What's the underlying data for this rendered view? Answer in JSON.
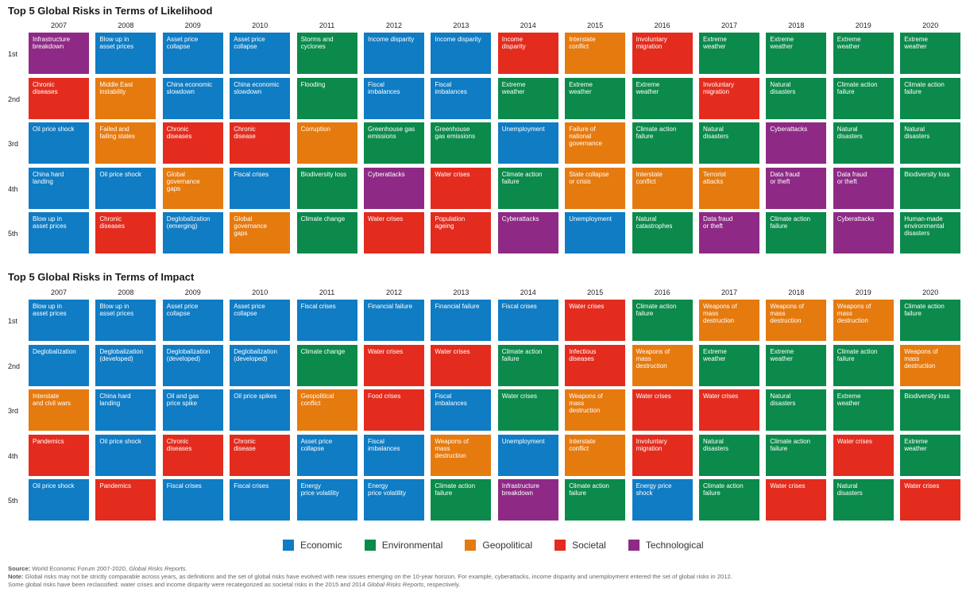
{
  "colors": {
    "Economic": "#0F7CC4",
    "Environmental": "#0B8A4B",
    "Geopolitical": "#E57A0F",
    "Societal": "#E32C1E",
    "Technological": "#8E2A86"
  },
  "years": [
    "2007",
    "2008",
    "2009",
    "2010",
    "2011",
    "2012",
    "2013",
    "2014",
    "2015",
    "2016",
    "2017",
    "2018",
    "2019",
    "2020"
  ],
  "ranks": [
    "1st",
    "2nd",
    "3rd",
    "4th",
    "5th"
  ],
  "legend": [
    "Economic",
    "Environmental",
    "Geopolitical",
    "Societal",
    "Technological"
  ],
  "chart_data": [
    {
      "type": "table",
      "title": "Top 5 Global Risks in Terms of Likelihood",
      "columns": [
        "2007",
        "2008",
        "2009",
        "2010",
        "2011",
        "2012",
        "2013",
        "2014",
        "2015",
        "2016",
        "2017",
        "2018",
        "2019",
        "2020"
      ],
      "rows": [
        "1st",
        "2nd",
        "3rd",
        "4th",
        "5th"
      ],
      "cells": [
        [
          [
            "Infrastructure\nbreakdown",
            "Technological"
          ],
          [
            "Blow up in\nasset prices",
            "Economic"
          ],
          [
            "Asset price\ncollapse",
            "Economic"
          ],
          [
            "Asset price\ncollapse",
            "Economic"
          ],
          [
            "Storms and\ncyclones",
            "Environmental"
          ],
          [
            "Income disparity",
            "Economic"
          ],
          [
            "Income disparity",
            "Economic"
          ],
          [
            "Income\ndisparity",
            "Societal"
          ],
          [
            "Interstate\nconflict",
            "Geopolitical"
          ],
          [
            "Involuntary\nmigration",
            "Societal"
          ],
          [
            "Extreme\nweather",
            "Environmental"
          ],
          [
            "Extreme\nweather",
            "Environmental"
          ],
          [
            "Extreme\nweather",
            "Environmental"
          ],
          [
            "Extreme\nweather",
            "Environmental"
          ]
        ],
        [
          [
            "Chronic\ndiseases",
            "Societal"
          ],
          [
            "Middle East\ninstability",
            "Geopolitical"
          ],
          [
            "China economic\nslowdown",
            "Economic"
          ],
          [
            "China economic\nslowdown",
            "Economic"
          ],
          [
            "Flooding",
            "Environmental"
          ],
          [
            "Fiscal\nimbalances",
            "Economic"
          ],
          [
            "Fiscal\nimbalances",
            "Economic"
          ],
          [
            "Extreme\nweather",
            "Environmental"
          ],
          [
            "Extreme\nweather",
            "Environmental"
          ],
          [
            "Extreme\nweather",
            "Environmental"
          ],
          [
            "Involuntary\nmigration",
            "Societal"
          ],
          [
            "Natural\ndisasters",
            "Environmental"
          ],
          [
            "Climate action\nfailure",
            "Environmental"
          ],
          [
            "Climate action\nfailure",
            "Environmental"
          ]
        ],
        [
          [
            "Oil price shock",
            "Economic"
          ],
          [
            "Failed and\nfailing states",
            "Geopolitical"
          ],
          [
            "Chronic\ndiseases",
            "Societal"
          ],
          [
            "Chronic\ndisease",
            "Societal"
          ],
          [
            "Corruption",
            "Geopolitical"
          ],
          [
            "Greenhouse gas\nemissions",
            "Environmental"
          ],
          [
            "Greenhouse\ngas emissions",
            "Environmental"
          ],
          [
            "Unemployment",
            "Economic"
          ],
          [
            "Failure of\nnational\ngovernance",
            "Geopolitical"
          ],
          [
            "Climate action\nfailure",
            "Environmental"
          ],
          [
            "Natural\ndisasters",
            "Environmental"
          ],
          [
            "Cyberattacks",
            "Technological"
          ],
          [
            "Natural\ndisasters",
            "Environmental"
          ],
          [
            "Natural\ndisasters",
            "Environmental"
          ]
        ],
        [
          [
            "China hard\nlanding",
            "Economic"
          ],
          [
            "Oil price shock",
            "Economic"
          ],
          [
            "Global\ngovernance\ngaps",
            "Geopolitical"
          ],
          [
            "Fiscal crises",
            "Economic"
          ],
          [
            "Biodiversity loss",
            "Environmental"
          ],
          [
            "Cyberattacks",
            "Technological"
          ],
          [
            "Water crises",
            "Societal"
          ],
          [
            "Climate action\nfailure",
            "Environmental"
          ],
          [
            "State collapse\nor crisis",
            "Geopolitical"
          ],
          [
            "Interstate\nconflict",
            "Geopolitical"
          ],
          [
            "Terrorist\nattacks",
            "Geopolitical"
          ],
          [
            "Data fraud\nor theft",
            "Technological"
          ],
          [
            "Data fraud\nor theft",
            "Technological"
          ],
          [
            "Biodiversity loss",
            "Environmental"
          ]
        ],
        [
          [
            "Blow up in\nasset prices",
            "Economic"
          ],
          [
            "Chronic\ndiseases",
            "Societal"
          ],
          [
            "Deglobalization\n(emerging)",
            "Economic"
          ],
          [
            "Global\ngovernance\ngaps",
            "Geopolitical"
          ],
          [
            "Climate change",
            "Environmental"
          ],
          [
            "Water crises",
            "Societal"
          ],
          [
            "Population\nageing",
            "Societal"
          ],
          [
            "Cyberattacks",
            "Technological"
          ],
          [
            "Unemployment",
            "Economic"
          ],
          [
            "Natural\ncatastrophes",
            "Environmental"
          ],
          [
            "Data fraud\nor theft",
            "Technological"
          ],
          [
            "Climate action\nfailure",
            "Environmental"
          ],
          [
            "Cyberattacks",
            "Technological"
          ],
          [
            "Human-made\nenvironmental\ndisasters",
            "Environmental"
          ]
        ]
      ]
    },
    {
      "type": "table",
      "title": "Top 5 Global Risks in Terms of Impact",
      "columns": [
        "2007",
        "2008",
        "2009",
        "2010",
        "2011",
        "2012",
        "2013",
        "2014",
        "2015",
        "2016",
        "2017",
        "2018",
        "2019",
        "2020"
      ],
      "rows": [
        "1st",
        "2nd",
        "3rd",
        "4th",
        "5th"
      ],
      "cells": [
        [
          [
            "Blow up in\nasset prices",
            "Economic"
          ],
          [
            "Blow up in\nasset prices",
            "Economic"
          ],
          [
            "Asset price\ncollapse",
            "Economic"
          ],
          [
            "Asset price\ncollapse",
            "Economic"
          ],
          [
            "Fiscal crises",
            "Economic"
          ],
          [
            "Financial failure",
            "Economic"
          ],
          [
            "Financial failure",
            "Economic"
          ],
          [
            "Fiscal crises",
            "Economic"
          ],
          [
            "Water crises",
            "Societal"
          ],
          [
            "Climate action\nfailure",
            "Environmental"
          ],
          [
            "Weapons of\nmass\ndestruction",
            "Geopolitical"
          ],
          [
            "Weapons of\nmass\ndestruction",
            "Geopolitical"
          ],
          [
            "Weapons of\nmass\ndestruction",
            "Geopolitical"
          ],
          [
            "Climate action\nfailure",
            "Environmental"
          ]
        ],
        [
          [
            "Deglobalization",
            "Economic"
          ],
          [
            "Deglobalization\n(developed)",
            "Economic"
          ],
          [
            "Deglobalization\n(developed)",
            "Economic"
          ],
          [
            "Deglobalization\n(developed)",
            "Economic"
          ],
          [
            "Climate change",
            "Environmental"
          ],
          [
            "Water crises",
            "Societal"
          ],
          [
            "Water crises",
            "Societal"
          ],
          [
            "Climate action\nfailure",
            "Environmental"
          ],
          [
            "Infectious\ndiseases",
            "Societal"
          ],
          [
            "Weapons of\nmass\ndestruction",
            "Geopolitical"
          ],
          [
            "Extreme\nweather",
            "Environmental"
          ],
          [
            "Extreme\nweather",
            "Environmental"
          ],
          [
            "Climate action\nfailure",
            "Environmental"
          ],
          [
            "Weapons of\nmass\ndestruction",
            "Geopolitical"
          ]
        ],
        [
          [
            "Interstate\nand civil wars",
            "Geopolitical"
          ],
          [
            "China hard\nlanding",
            "Economic"
          ],
          [
            "Oil and gas\nprice spike",
            "Economic"
          ],
          [
            "Oil price spikes",
            "Economic"
          ],
          [
            "Geopolitical\nconflict",
            "Geopolitical"
          ],
          [
            "Food crises",
            "Societal"
          ],
          [
            "Fiscal\nimbalances",
            "Economic"
          ],
          [
            "Water crises",
            "Environmental"
          ],
          [
            "Weapons of\nmass\ndestruction",
            "Geopolitical"
          ],
          [
            "Water crises",
            "Societal"
          ],
          [
            "Water crises",
            "Societal"
          ],
          [
            "Natural\ndisasters",
            "Environmental"
          ],
          [
            "Extreme\nweather",
            "Environmental"
          ],
          [
            "Biodiversity loss",
            "Environmental"
          ]
        ],
        [
          [
            "Pandemics",
            "Societal"
          ],
          [
            "Oil price shock",
            "Economic"
          ],
          [
            "Chronic\ndiseases",
            "Societal"
          ],
          [
            "Chronic\ndisease",
            "Societal"
          ],
          [
            "Asset price\ncollapse",
            "Economic"
          ],
          [
            "Fiscal\nimbalances",
            "Economic"
          ],
          [
            "Weapons of\nmass\ndestruction",
            "Geopolitical"
          ],
          [
            "Unemployment",
            "Economic"
          ],
          [
            "Interstate\nconflict",
            "Geopolitical"
          ],
          [
            "Involuntary\nmigration",
            "Societal"
          ],
          [
            "Natural\ndisasters",
            "Environmental"
          ],
          [
            "Climate action\nfailure",
            "Environmental"
          ],
          [
            "Water crises",
            "Societal"
          ],
          [
            "Extreme\nweather",
            "Environmental"
          ]
        ],
        [
          [
            "Oil price shock",
            "Economic"
          ],
          [
            "Pandemics",
            "Societal"
          ],
          [
            "Fiscal crises",
            "Economic"
          ],
          [
            "Fiscal crises",
            "Economic"
          ],
          [
            "Energy\nprice volatility",
            "Economic"
          ],
          [
            "Energy\nprice volatility",
            "Economic"
          ],
          [
            "Climate action\nfailure",
            "Environmental"
          ],
          [
            "Infrastructure\nbreakdown",
            "Technological"
          ],
          [
            "Climate action\nfailure",
            "Environmental"
          ],
          [
            "Energy price\nshock",
            "Economic"
          ],
          [
            "Climate action\nfailure",
            "Environmental"
          ],
          [
            "Water crises",
            "Societal"
          ],
          [
            "Natural\ndisasters",
            "Environmental"
          ],
          [
            "Water crises",
            "Societal"
          ]
        ]
      ]
    }
  ],
  "footnote": {
    "source_label": "Source:",
    "source_text": " World Economic Forum 2007-2020, ",
    "source_italic": "Global Risks Reports",
    "source_end": ".",
    "note_label": "Note:",
    "note_text": " Global risks may not be strictly comparable across years, as definitions and the set of global risks have evolved with new issues emerging on the 10-year horizon. For example, cyberattacks, income disparity and unemployment entered the set of global risks in 2012.",
    "line3_text": "Some global risks have been reclassified: water crises and income disparity were recategorized as societal risks in the 2015 and 2014 ",
    "line3_italic": "Global Risks Reports",
    "line3_end": ", respectively."
  }
}
